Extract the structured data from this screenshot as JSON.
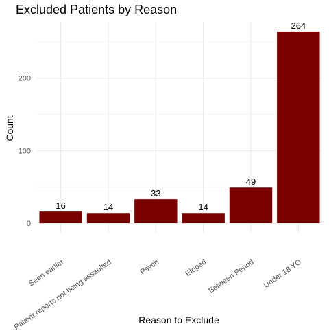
{
  "chart_data": {
    "type": "bar",
    "title": "Excluded Patients by Reason",
    "xlabel": "Reason to Exclude",
    "ylabel": "Count",
    "categories": [
      "Seen earlier",
      "Patient reports not being assaulted",
      "Psych",
      "Eloped",
      "Between Period",
      "Under 18 YO"
    ],
    "values": [
      16,
      14,
      33,
      14,
      49,
      264
    ],
    "data_labels": [
      "16",
      "14",
      "33",
      "14",
      "49",
      "264"
    ],
    "y_ticks": [
      0,
      100,
      200
    ],
    "y_tick_labels": [
      "0",
      "100",
      "200"
    ],
    "ylim": [
      -13.2,
      277.2
    ],
    "grid": true,
    "legend": "none",
    "bar_color": "#7a0000"
  }
}
